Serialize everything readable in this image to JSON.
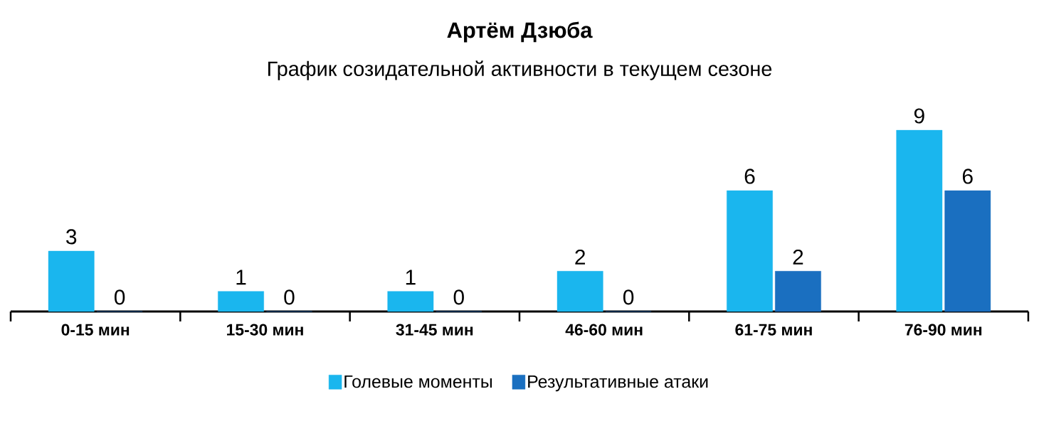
{
  "chart_data": {
    "type": "bar",
    "title": "Артём Дзюба",
    "subtitle": "График созидательной активности в текущем сезоне",
    "categories": [
      "0-15 мин",
      "15-30 мин",
      "31-45 мин",
      "46-60 мин",
      "61-75 мин",
      "76-90 мин"
    ],
    "series": [
      {
        "name": "Голевые моменты",
        "color": "#1ab6ee",
        "values": [
          3,
          1,
          1,
          2,
          6,
          9
        ]
      },
      {
        "name": "Результативные атаки",
        "color": "#1a6fc0",
        "values": [
          0,
          0,
          0,
          0,
          2,
          6
        ]
      }
    ],
    "data_labels": true,
    "legend": "bottom"
  }
}
